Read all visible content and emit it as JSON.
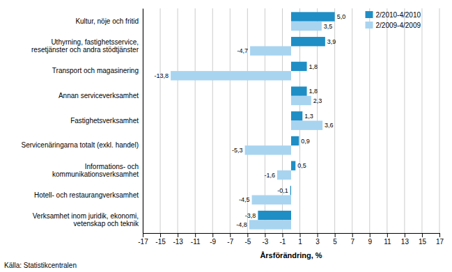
{
  "chart_data": {
    "type": "bar",
    "orientation": "horizontal",
    "categories": [
      "Kultur, nöje och fritid",
      "Uthyrning, fastighetsservice,\nresetjänster och andra stödtjänster",
      "Transport och magasinering",
      "Annan serviceverksamhet",
      "Fastighetsverksamhet",
      "Servicenäringarna totalt (exkl. handel)",
      "Informations- och\nkommunikationsverksamhet",
      "Hotell- och restaurangverksamhet",
      "Verksamhet inom juridik, ekonomi,\nvetenskap och teknik"
    ],
    "series": [
      {
        "name": "2/2010-4/2010",
        "color": "#1f8ec5",
        "values": [
          5.0,
          3.9,
          1.8,
          1.8,
          1.3,
          0.9,
          0.5,
          -0.1,
          -3.8
        ],
        "value_labels": [
          "5,0",
          "3,9",
          "1,8",
          "1,8",
          "1,3",
          "0,9",
          "0,5",
          "-0,1",
          "-3,8"
        ]
      },
      {
        "name": "2/2009-4/2009",
        "color": "#a8d4f0",
        "values": [
          3.5,
          -4.7,
          -13.8,
          2.3,
          3.6,
          -5.3,
          -1.6,
          -4.5,
          -4.8
        ],
        "value_labels": [
          "3,5",
          "-4,7",
          "-13,8",
          "2,3",
          "3,6",
          "-5,3",
          "-1,6",
          "-4,5",
          "-4,8"
        ]
      }
    ],
    "xlabel": "Årsförändring, %",
    "xlim": [
      -17,
      17
    ],
    "xticks": [
      -17,
      -15,
      -13,
      -11,
      -9,
      -7,
      -5,
      -3,
      -1,
      1,
      3,
      5,
      7,
      9,
      11,
      13,
      15,
      17
    ],
    "grid": true,
    "legend": "upper right",
    "data_labels": true,
    "annotations": [
      "Källa: Statistikcentralen"
    ]
  }
}
